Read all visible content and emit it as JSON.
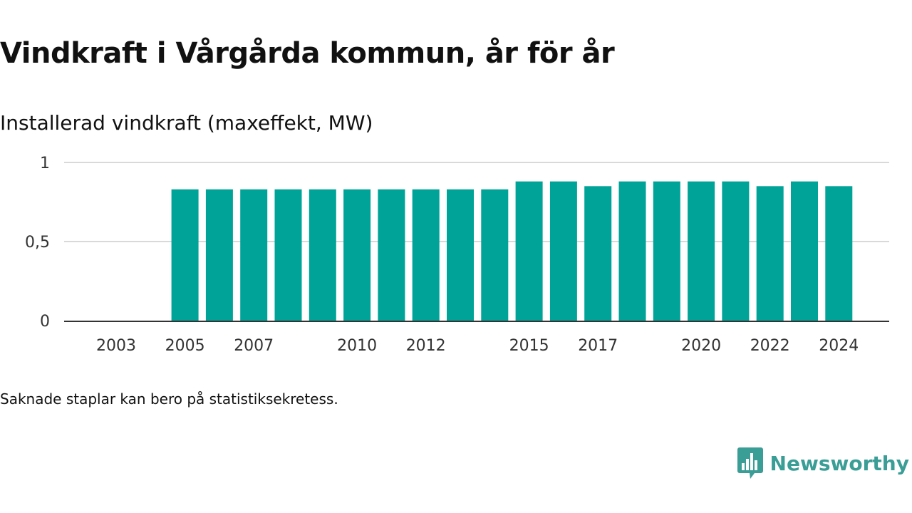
{
  "title": "Vindkraft i Vårgårda kommun, år för år",
  "subtitle": "Installerad vindkraft (maxeffekt, MW)",
  "note": "Saknade staplar kan bero på statistiksekretess.",
  "brand": {
    "name": "Newsworthy",
    "icon": "chart-speech-bubble-icon",
    "color": "#3a9d96"
  },
  "chart_data": {
    "type": "bar",
    "categories": [
      "2003",
      "2004",
      "2005",
      "2006",
      "2007",
      "2008",
      "2009",
      "2010",
      "2011",
      "2012",
      "2013",
      "2014",
      "2015",
      "2016",
      "2017",
      "2018",
      "2019",
      "2020",
      "2021",
      "2022",
      "2023",
      "2024"
    ],
    "values": [
      null,
      null,
      0.83,
      0.83,
      0.83,
      0.83,
      0.83,
      0.83,
      0.83,
      0.83,
      0.83,
      0.83,
      0.88,
      0.88,
      0.85,
      0.88,
      0.88,
      0.88,
      0.88,
      0.85,
      0.88,
      0.85
    ],
    "x_tick_labels": [
      "2003",
      "2005",
      "2007",
      "2010",
      "2012",
      "2015",
      "2017",
      "2020",
      "2022",
      "2024"
    ],
    "y_ticks": [
      0,
      0.5,
      1
    ],
    "y_tick_labels": [
      "0",
      "0,5",
      "1"
    ],
    "ylim": [
      0,
      1
    ],
    "grid": true,
    "bar_color": "#00a398",
    "xlabel": "",
    "ylabel": ""
  }
}
